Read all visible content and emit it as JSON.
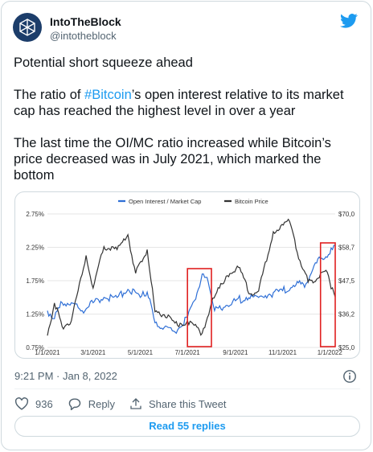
{
  "tweet": {
    "author_name": "IntoTheBlock",
    "author_handle": "@intotheblock",
    "paragraph1": "Potential short squeeze ahead",
    "paragraph2_pre": "The ratio of ",
    "hashtag": "#Bitcoin",
    "paragraph2_post": "’s open interest relative to its market cap has reached the highest level in over a year",
    "paragraph3": "The last time the OI/MC ratio increased while Bitcoin’s price decreased was in July 2021, which marked the bottom",
    "timestamp": "9:21 PM · Jan 8, 2022",
    "likes_count": "936",
    "reply_label": "Reply",
    "share_label": "Share this Tweet",
    "read_replies_label": "Read 55 replies"
  },
  "colors": {
    "accent": "#1d9bf0",
    "oi_series": "#2f6fd6",
    "price_series": "#333333",
    "highlight_box": "#e02020"
  },
  "chart_data": {
    "type": "line",
    "legend": [
      "Open Interest / Market Cap",
      "Bitcoin Price"
    ],
    "legend_position": "top-center",
    "x_ticks": [
      "1/1/2021",
      "3/1/2021",
      "5/1/2021",
      "7/1/2021",
      "9/1/2021",
      "11/1/2021",
      "1/1/2022"
    ],
    "left_axis_ticks": [
      "2.75%",
      "2.25%",
      "1.75%",
      "1.25%",
      "0.75%"
    ],
    "left_axis_range": [
      0.75,
      2.75
    ],
    "right_axis_ticks": [
      "$70,0",
      "$58,7",
      "$47,5",
      "$36,2",
      "$25,0"
    ],
    "right_axis_range": [
      25000,
      70000
    ],
    "x_range": [
      "2021-01-01",
      "2022-01-08"
    ],
    "grid": "horizontal",
    "series": [
      {
        "name": "Open Interest / Market Cap",
        "axis": "left",
        "unit": "%",
        "points": [
          [
            "2021-01-01",
            1.3
          ],
          [
            "2021-01-10",
            1.18
          ],
          [
            "2021-01-20",
            1.42
          ],
          [
            "2021-02-01",
            1.42
          ],
          [
            "2021-02-15",
            1.3
          ],
          [
            "2021-03-01",
            1.42
          ],
          [
            "2021-03-15",
            1.5
          ],
          [
            "2021-04-01",
            1.5
          ],
          [
            "2021-04-15",
            1.62
          ],
          [
            "2021-05-01",
            1.5
          ],
          [
            "2021-05-10",
            1.58
          ],
          [
            "2021-05-20",
            1.12
          ],
          [
            "2021-06-01",
            1.05
          ],
          [
            "2021-06-15",
            0.98
          ],
          [
            "2021-07-01",
            1.2
          ],
          [
            "2021-07-10",
            1.45
          ],
          [
            "2021-07-20",
            1.85
          ],
          [
            "2021-07-28",
            1.72
          ],
          [
            "2021-08-05",
            1.3
          ],
          [
            "2021-08-20",
            1.38
          ],
          [
            "2021-09-01",
            1.45
          ],
          [
            "2021-09-15",
            1.5
          ],
          [
            "2021-10-01",
            1.5
          ],
          [
            "2021-10-15",
            1.55
          ],
          [
            "2021-11-01",
            1.6
          ],
          [
            "2021-11-15",
            1.68
          ],
          [
            "2021-12-01",
            1.7
          ],
          [
            "2021-12-10",
            1.92
          ],
          [
            "2021-12-20",
            2.08
          ],
          [
            "2022-01-01",
            2.15
          ],
          [
            "2022-01-08",
            2.28
          ]
        ]
      },
      {
        "name": "Bitcoin Price",
        "axis": "right",
        "unit": "USD",
        "points": [
          [
            "2021-01-01",
            29000
          ],
          [
            "2021-01-10",
            40000
          ],
          [
            "2021-01-20",
            32000
          ],
          [
            "2021-02-01",
            34000
          ],
          [
            "2021-02-20",
            56000
          ],
          [
            "2021-03-01",
            45000
          ],
          [
            "2021-03-15",
            59000
          ],
          [
            "2021-04-01",
            58000
          ],
          [
            "2021-04-15",
            63000
          ],
          [
            "2021-04-25",
            50000
          ],
          [
            "2021-05-10",
            58000
          ],
          [
            "2021-05-20",
            37000
          ],
          [
            "2021-06-01",
            36000
          ],
          [
            "2021-06-20",
            32000
          ],
          [
            "2021-07-01",
            34000
          ],
          [
            "2021-07-20",
            29800
          ],
          [
            "2021-08-01",
            40000
          ],
          [
            "2021-08-20",
            49000
          ],
          [
            "2021-09-05",
            52000
          ],
          [
            "2021-09-20",
            43000
          ],
          [
            "2021-10-01",
            44000
          ],
          [
            "2021-10-20",
            64000
          ],
          [
            "2021-11-10",
            67500
          ],
          [
            "2021-11-20",
            57000
          ],
          [
            "2021-12-04",
            47000
          ],
          [
            "2021-12-15",
            48000
          ],
          [
            "2021-12-27",
            51000
          ],
          [
            "2022-01-01",
            47000
          ],
          [
            "2022-01-08",
            42000
          ]
        ]
      }
    ],
    "annotations": [
      {
        "type": "rectangle",
        "from": "2021-07-01",
        "to": "2021-08-01",
        "color": "red"
      },
      {
        "type": "rectangle",
        "from": "2021-12-20",
        "to": "2022-01-08",
        "color": "red"
      }
    ]
  }
}
